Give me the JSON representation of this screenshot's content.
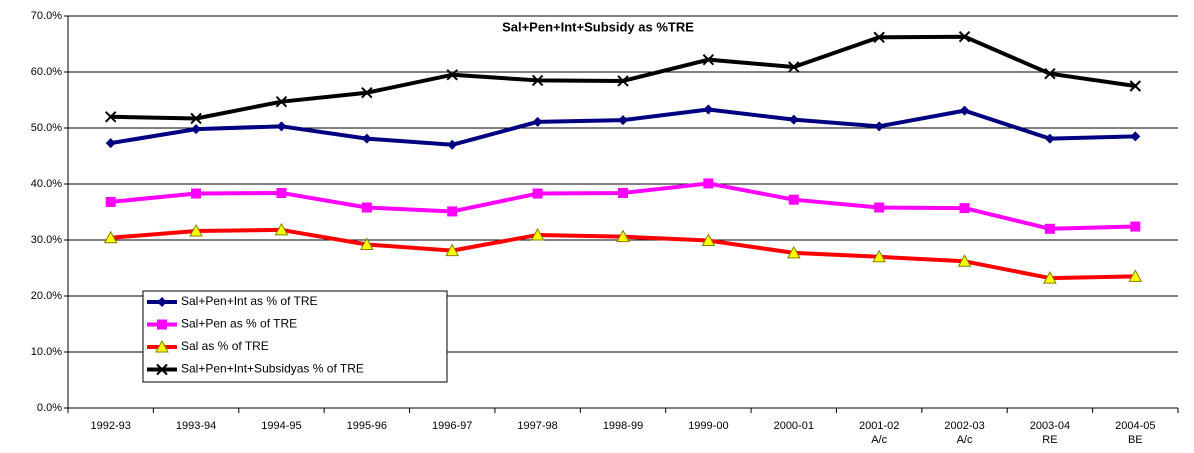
{
  "chart_data": {
    "type": "line",
    "title": "Sal+Pen+Int+Subsidy as %TRE",
    "categories": [
      "1992-93",
      "1993-94",
      "1994-95",
      "1995-96",
      "1996-97",
      "1997-98",
      "1998-99",
      "1999-00",
      "2000-01",
      "2001-02 A/c",
      "2002-03 A/c",
      "2003-04 RE",
      "2004-05 BE"
    ],
    "ylim": [
      0,
      70
    ],
    "yticks": [
      {
        "value": 0,
        "label": "0.0%"
      },
      {
        "value": 10,
        "label": "10.0%"
      },
      {
        "value": 20,
        "label": "20.0%"
      },
      {
        "value": 30,
        "label": "30.0%"
      },
      {
        "value": 40,
        "label": "40.0%"
      },
      {
        "value": 50,
        "label": "50.0%"
      },
      {
        "value": 60,
        "label": "60.0%"
      },
      {
        "value": 70,
        "label": "70.0%"
      }
    ],
    "grid": true,
    "legend": "lower-left",
    "series": [
      {
        "name": "Sal+Pen+Int as % of TRE",
        "color": "#000080",
        "marker": "diamond",
        "values": [
          47.3,
          49.8,
          50.3,
          48.1,
          47.0,
          51.1,
          51.4,
          53.3,
          51.5,
          50.3,
          53.1,
          48.1,
          48.5
        ]
      },
      {
        "name": "Sal+Pen as % of TRE",
        "color": "#FF00FF",
        "marker": "square",
        "values": [
          36.8,
          38.3,
          38.4,
          35.8,
          35.1,
          38.3,
          38.4,
          40.1,
          37.2,
          35.8,
          35.7,
          32.0,
          32.4
        ]
      },
      {
        "name": "Sal as % of TRE",
        "color": "#FF0000",
        "marker": "triangle",
        "values": [
          30.4,
          31.6,
          31.8,
          29.2,
          28.1,
          30.9,
          30.6,
          29.9,
          27.7,
          27.0,
          26.2,
          23.2,
          23.5
        ]
      },
      {
        "name": "Sal+Pen+Int+Subsidyas % of TRE",
        "color": "#000000",
        "marker": "x",
        "values": [
          52.0,
          51.7,
          54.7,
          56.3,
          59.5,
          58.5,
          58.4,
          62.2,
          60.9,
          66.2,
          66.3,
          59.7,
          57.5
        ]
      }
    ]
  }
}
